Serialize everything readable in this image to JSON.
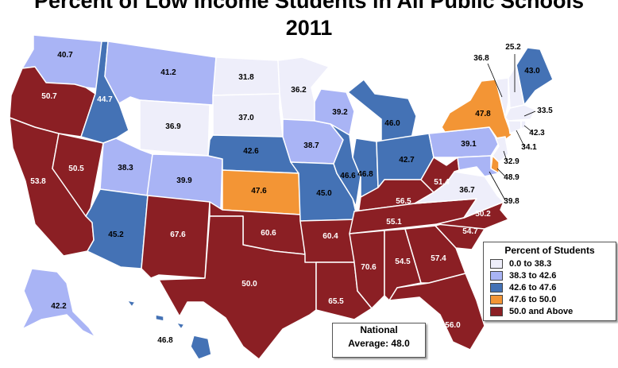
{
  "title_line1": "Percent of Low Income Students in All Public Schools",
  "title_line2": "2011",
  "colors": {
    "c1": "#eeeefa",
    "c2": "#a9b4f5",
    "c3": "#4472b5",
    "c4": "#f39535",
    "c5": "#8b1f24",
    "border": "#ffffff"
  },
  "legend": {
    "title": "Percent of Students",
    "items": [
      {
        "label": "0.0 to 38.3",
        "color": "#eeeefa"
      },
      {
        "label": "38.3 to 42.6",
        "color": "#a9b4f5"
      },
      {
        "label": "42.6 to 47.6",
        "color": "#4472b5"
      },
      {
        "label": "47.6 to 50.0",
        "color": "#f39535"
      },
      {
        "label": "50.0 and Above",
        "color": "#8b1f24"
      }
    ]
  },
  "national": {
    "line1": "National",
    "line2": "Average: 48.0"
  },
  "labels": {
    "WA": "40.7",
    "OR": "50.7",
    "CA": "53.8",
    "NV": "50.5",
    "ID": "44.7",
    "MT": "41.2",
    "WY": "36.9",
    "UT": "38.3",
    "CO": "39.9",
    "AZ": "45.2",
    "NM": "67.6",
    "ND": "31.8",
    "SD": "37.0",
    "NE": "42.6",
    "KS": "47.6",
    "OK": "60.6",
    "TX": "50.0",
    "MN": "36.2",
    "IA": "38.7",
    "MO": "45.0",
    "AR": "60.4",
    "LA": "65.5",
    "WI": "39.2",
    "IL": "46.6",
    "MI": "46.0",
    "IN": "46.8",
    "OH": "42.7",
    "KY": "56.5",
    "TN": "55.1",
    "MS": "70.6",
    "AL": "54.5",
    "GA": "57.4",
    "FL": "56.0",
    "SC": "54.7",
    "NC": "50.2",
    "VA": "36.7",
    "WV": "51.4",
    "PA": "39.1",
    "NY": "47.8",
    "ME": "43.0",
    "VT": "36.8",
    "NH": "25.2",
    "MA": "33.5",
    "CT": "34.1",
    "RI": "42.3",
    "NJ": "32.9",
    "DE": "48.9",
    "MD": "39.8",
    "AK": "42.2",
    "HI": "46.8"
  }
}
